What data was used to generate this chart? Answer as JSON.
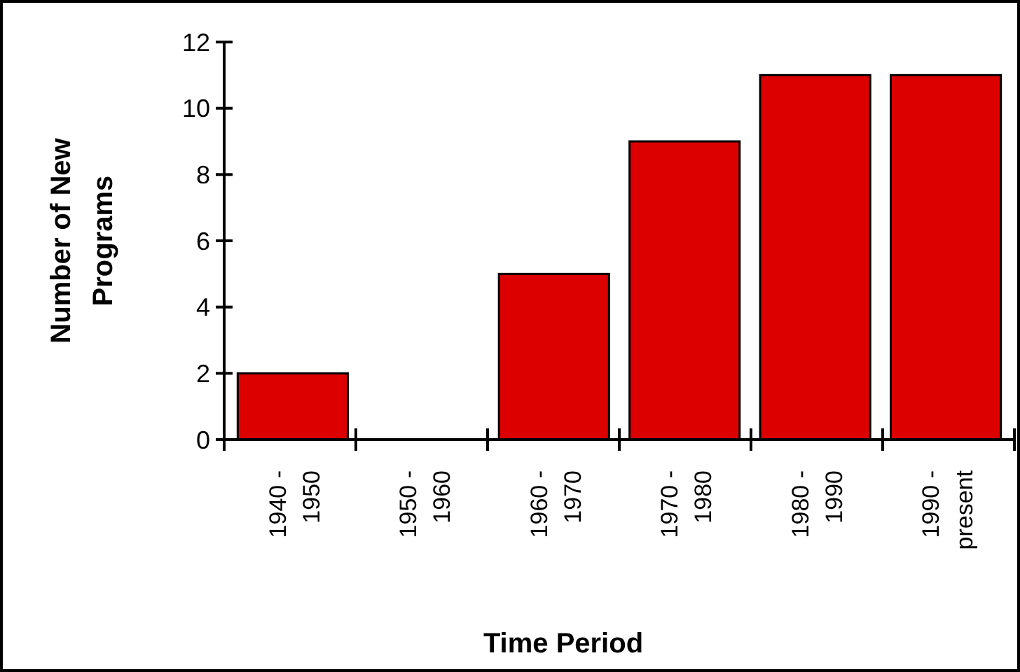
{
  "chart_data": {
    "type": "bar",
    "xlabel": "Time Period",
    "ylabel": "Number of New Programs",
    "categories": [
      "1940 - 1950",
      "1950 - 1960",
      "1960 - 1970",
      "1970 - 1980",
      "1980 - 1990",
      "1990 - present"
    ],
    "values": [
      2,
      0,
      5,
      9,
      11,
      11
    ],
    "color": "#dd0000",
    "ylim": [
      0,
      12
    ],
    "yticks": [
      0,
      2,
      4,
      6,
      8,
      10,
      12
    ],
    "grid": false
  }
}
